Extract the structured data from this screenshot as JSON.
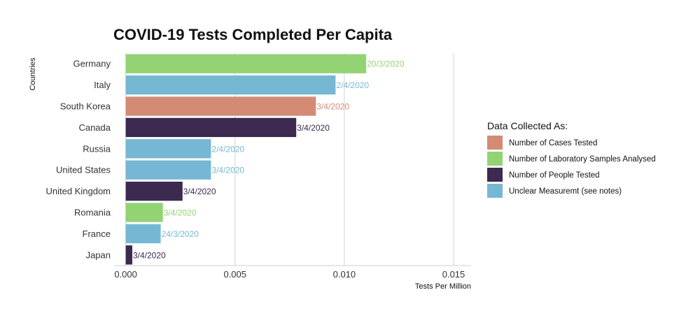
{
  "chart_data": {
    "type": "bar",
    "orientation": "horizontal",
    "title": "COVID-19 Tests Completed Per Capita",
    "xlabel": "Tests Per Million",
    "ylabel": "Countries",
    "xlim": [
      -0.0005,
      0.0158
    ],
    "xticks": [
      0.0,
      0.005,
      0.01,
      0.015
    ],
    "xtick_labels": [
      "0.000",
      "0.005",
      "0.010",
      "0.015"
    ],
    "grid": true,
    "legend_position": "right",
    "legend_title": "Data Collected As:",
    "legend": [
      {
        "name": "Number of Cases Tested",
        "color": "#D38B76"
      },
      {
        "name": "Number of Laboratory Samples Analysed",
        "color": "#93D374"
      },
      {
        "name": "Number of People Tested",
        "color": "#3C2A50"
      },
      {
        "name": "Unclear Measuremt (see notes)",
        "color": "#76B8D4"
      }
    ],
    "bars": [
      {
        "category": "Germany",
        "value": 0.011,
        "label": "20/3/2020",
        "group": "Number of Laboratory Samples Analysed"
      },
      {
        "category": "Italy",
        "value": 0.0096,
        "label": "2/4/2020",
        "group": "Unclear Measuremt (see notes)"
      },
      {
        "category": "South Korea",
        "value": 0.0087,
        "label": "3/4/2020",
        "group": "Number of Cases Tested"
      },
      {
        "category": "Canada",
        "value": 0.0078,
        "label": "3/4/2020",
        "group": "Number of People Tested"
      },
      {
        "category": "Russia",
        "value": 0.0039,
        "label": "2/4/2020",
        "group": "Unclear Measuremt (see notes)"
      },
      {
        "category": "United States",
        "value": 0.0039,
        "label": "3/4/2020",
        "group": "Unclear Measuremt (see notes)"
      },
      {
        "category": "United Kingdom",
        "value": 0.0026,
        "label": "3/4/2020",
        "group": "Number of People Tested"
      },
      {
        "category": "Romania",
        "value": 0.0017,
        "label": "3/4/2020",
        "group": "Number of Laboratory Samples Analysed"
      },
      {
        "category": "France",
        "value": 0.0016,
        "label": "24/3/2020",
        "group": "Unclear Measuremt (see notes)"
      },
      {
        "category": "Japan",
        "value": 0.0003,
        "label": "3/4/2020",
        "group": "Number of People Tested"
      }
    ]
  }
}
